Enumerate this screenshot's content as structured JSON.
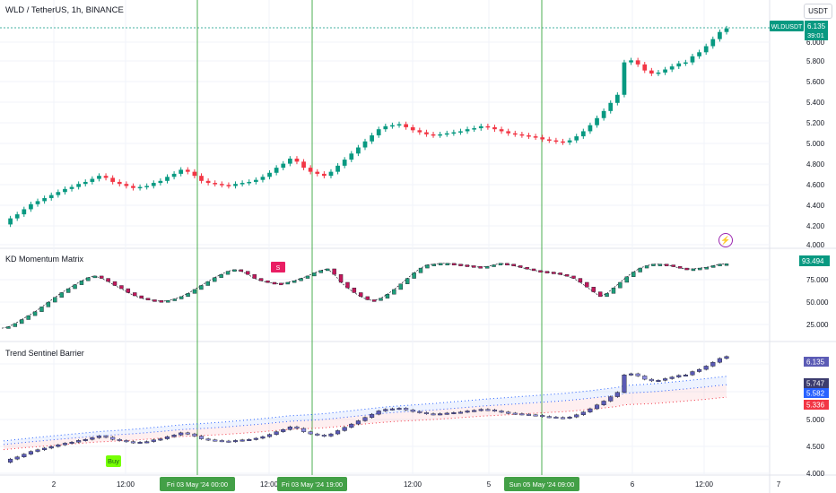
{
  "header": {
    "symbol_line": "WLD / TetherUS, 1h, BINANCE",
    "currency_button": "USDT"
  },
  "price_tag": {
    "symbol": "WLDUSDT",
    "price": "6.135",
    "countdown": "39:01"
  },
  "colors": {
    "up": "#089981",
    "down": "#f23645",
    "vline": "#4caf50",
    "trend_candle": "#5b5bb5",
    "kd_bull": "#1e9e7a",
    "kd_bear": "#c2185b",
    "kd_band_pink": "#e91e63",
    "upper_band": "#2962ff",
    "lower_band": "#f23645",
    "buy_bg": "#76ff03"
  },
  "panes": {
    "main": {
      "y_ticks": [
        "6.000",
        "5.800",
        "5.600",
        "5.400",
        "5.200",
        "5.000",
        "4.800",
        "4.600",
        "4.400",
        "4.200",
        "4.000"
      ]
    },
    "kd": {
      "title": "KD Momentum Matrix",
      "y_ticks": [
        "75.000",
        "50.000",
        "25.000"
      ],
      "last_value": "93.494",
      "marker_text": "S"
    },
    "trend": {
      "title": "Trend Sentinel Barrier",
      "y_ticks": [
        "6.000",
        "5.500",
        "5.000",
        "4.500",
        "4.000"
      ],
      "labels": [
        "6.135",
        "5.747",
        "5.582",
        "5.336"
      ],
      "buy_label": "Buy"
    }
  },
  "x_axis": {
    "ticks": [
      "2",
      "12:00",
      "12:00",
      "12:00",
      "5",
      "6",
      "12:00",
      "7"
    ],
    "highlighted": [
      "Fri 03 May '24   00:00",
      "Fri 03 May '24   19:00",
      "Sun 05 May '24   09:00"
    ]
  },
  "chart_data": {
    "type": "candlestick",
    "x_unit": "hour",
    "series_main": [
      4.2,
      4.26,
      4.3,
      4.35,
      4.4,
      4.43,
      4.46,
      4.49,
      4.52,
      4.55,
      4.57,
      4.6,
      4.62,
      4.65,
      4.68,
      4.66,
      4.62,
      4.6,
      4.58,
      4.56,
      4.57,
      4.58,
      4.61,
      4.63,
      4.67,
      4.7,
      4.74,
      4.72,
      4.68,
      4.63,
      4.61,
      4.6,
      4.59,
      4.58,
      4.6,
      4.61,
      4.62,
      4.64,
      4.67,
      4.71,
      4.76,
      4.8,
      4.85,
      4.82,
      4.76,
      4.72,
      4.7,
      4.68,
      4.72,
      4.78,
      4.84,
      4.9,
      4.96,
      5.02,
      5.08,
      5.14,
      5.17,
      5.18,
      5.19,
      5.16,
      5.13,
      5.11,
      5.09,
      5.08,
      5.09,
      5.1,
      5.11,
      5.12,
      5.14,
      5.15,
      5.17,
      5.16,
      5.14,
      5.12,
      5.1,
      5.09,
      5.08,
      5.07,
      5.06,
      5.04,
      5.03,
      5.02,
      5.01,
      5.03,
      5.07,
      5.12,
      5.18,
      5.25,
      5.32,
      5.4,
      5.48,
      5.8,
      5.82,
      5.78,
      5.72,
      5.69,
      5.7,
      5.73,
      5.76,
      5.79,
      5.8,
      5.86,
      5.9,
      5.96,
      6.03,
      6.1,
      6.135
    ],
    "y_range_main": [
      4.0,
      6.1
    ],
    "series_kd": [
      12,
      14,
      18,
      23,
      28,
      33,
      39,
      45,
      51,
      57,
      62,
      67,
      72,
      76,
      78,
      75,
      71,
      66,
      62,
      57,
      53,
      50,
      48,
      47,
      46,
      47,
      49,
      52,
      56,
      61,
      66,
      71,
      76,
      80,
      84,
      86,
      84,
      80,
      75,
      72,
      70,
      69,
      68,
      70,
      72,
      75,
      78,
      82,
      85,
      87,
      80,
      70,
      63,
      57,
      52,
      48,
      47,
      50,
      55,
      61,
      68,
      75,
      82,
      88,
      92,
      93,
      94,
      94,
      93,
      92,
      91,
      90,
      89,
      90,
      92,
      94,
      93,
      91,
      89,
      87,
      85,
      84,
      83,
      82,
      80,
      78,
      75,
      70,
      64,
      58,
      52,
      56,
      63,
      70,
      77,
      83,
      88,
      91,
      93,
      93,
      92,
      90,
      88,
      87,
      87,
      88,
      89,
      91,
      93,
      93.494
    ],
    "y_range_kd": [
      10,
      100
    ],
    "trend_upper_band": {
      "start": 4.62,
      "end": 5.747
    },
    "trend_mid_band": {
      "start": 4.55,
      "end": 5.582
    },
    "trend_lower_band": {
      "start": 4.45,
      "end": 5.336
    }
  }
}
